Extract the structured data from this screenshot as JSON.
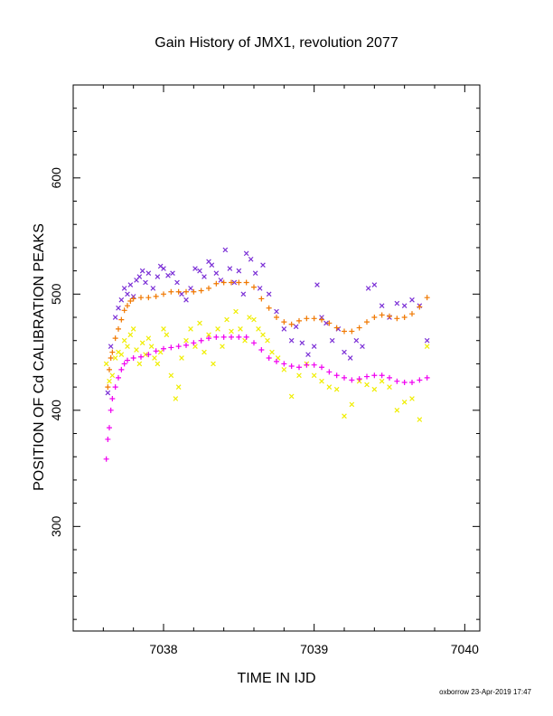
{
  "chart_data": {
    "type": "scatter",
    "title": "Gain History of JMX1, revolution 2077",
    "xlabel": "TIME IN IJD",
    "ylabel": "POSITION OF Cd CALIBRATION PEAKS",
    "xlim": [
      7037.4,
      7040.1
    ],
    "ylim": [
      210,
      680
    ],
    "xticks": [
      7038,
      7039,
      7040
    ],
    "yticks": [
      300,
      400,
      500,
      600
    ],
    "grid": false,
    "series": [
      {
        "color": "#7B2FD6",
        "marker": "x",
        "points": [
          [
            7037.63,
            415
          ],
          [
            7037.65,
            455
          ],
          [
            7037.68,
            480
          ],
          [
            7037.7,
            488
          ],
          [
            7037.72,
            495
          ],
          [
            7037.74,
            505
          ],
          [
            7037.76,
            500
          ],
          [
            7037.78,
            508
          ],
          [
            7037.8,
            498
          ],
          [
            7037.82,
            512
          ],
          [
            7037.84,
            515
          ],
          [
            7037.86,
            520
          ],
          [
            7037.88,
            510
          ],
          [
            7037.9,
            518
          ],
          [
            7037.93,
            505
          ],
          [
            7037.96,
            515
          ],
          [
            7037.98,
            524
          ],
          [
            7038.0,
            522
          ],
          [
            7038.03,
            516
          ],
          [
            7038.06,
            518
          ],
          [
            7038.09,
            510
          ],
          [
            7038.12,
            500
          ],
          [
            7038.15,
            495
          ],
          [
            7038.18,
            505
          ],
          [
            7038.21,
            522
          ],
          [
            7038.24,
            520
          ],
          [
            7038.27,
            515
          ],
          [
            7038.3,
            528
          ],
          [
            7038.32,
            525
          ],
          [
            7038.35,
            518
          ],
          [
            7038.38,
            512
          ],
          [
            7038.41,
            538
          ],
          [
            7038.44,
            522
          ],
          [
            7038.47,
            510
          ],
          [
            7038.5,
            520
          ],
          [
            7038.53,
            500
          ],
          [
            7038.55,
            535
          ],
          [
            7038.58,
            530
          ],
          [
            7038.61,
            518
          ],
          [
            7038.64,
            505
          ],
          [
            7038.66,
            525
          ],
          [
            7038.7,
            500
          ],
          [
            7038.75,
            485
          ],
          [
            7038.8,
            470
          ],
          [
            7038.85,
            460
          ],
          [
            7038.88,
            472
          ],
          [
            7038.92,
            458
          ],
          [
            7038.96,
            448
          ],
          [
            7039.0,
            455
          ],
          [
            7039.02,
            508
          ],
          [
            7039.05,
            480
          ],
          [
            7039.08,
            475
          ],
          [
            7039.12,
            460
          ],
          [
            7039.16,
            470
          ],
          [
            7039.2,
            450
          ],
          [
            7039.24,
            445
          ],
          [
            7039.28,
            460
          ],
          [
            7039.32,
            455
          ],
          [
            7039.36,
            505
          ],
          [
            7039.4,
            508
          ],
          [
            7039.45,
            490
          ],
          [
            7039.5,
            480
          ],
          [
            7039.55,
            492
          ],
          [
            7039.6,
            490
          ],
          [
            7039.65,
            495
          ],
          [
            7039.7,
            490
          ],
          [
            7039.75,
            460
          ]
        ]
      },
      {
        "color": "#F07800",
        "marker": "+",
        "points": [
          [
            7037.63,
            420
          ],
          [
            7037.64,
            435
          ],
          [
            7037.65,
            445
          ],
          [
            7037.66,
            450
          ],
          [
            7037.68,
            462
          ],
          [
            7037.7,
            470
          ],
          [
            7037.72,
            478
          ],
          [
            7037.74,
            486
          ],
          [
            7037.76,
            490
          ],
          [
            7037.78,
            494
          ],
          [
            7037.8,
            496
          ],
          [
            7037.85,
            497
          ],
          [
            7037.9,
            497
          ],
          [
            7037.95,
            498
          ],
          [
            7038.0,
            500
          ],
          [
            7038.05,
            502
          ],
          [
            7038.1,
            502
          ],
          [
            7038.15,
            502
          ],
          [
            7038.2,
            502
          ],
          [
            7038.25,
            503
          ],
          [
            7038.3,
            505
          ],
          [
            7038.35,
            509
          ],
          [
            7038.4,
            510
          ],
          [
            7038.45,
            510
          ],
          [
            7038.5,
            510
          ],
          [
            7038.55,
            510
          ],
          [
            7038.6,
            506
          ],
          [
            7038.65,
            496
          ],
          [
            7038.7,
            488
          ],
          [
            7038.75,
            480
          ],
          [
            7038.8,
            476
          ],
          [
            7038.85,
            474
          ],
          [
            7038.9,
            477
          ],
          [
            7038.95,
            479
          ],
          [
            7039.0,
            479
          ],
          [
            7039.05,
            478
          ],
          [
            7039.1,
            475
          ],
          [
            7039.15,
            471
          ],
          [
            7039.2,
            468
          ],
          [
            7039.25,
            468
          ],
          [
            7039.3,
            471
          ],
          [
            7039.35,
            476
          ],
          [
            7039.4,
            480
          ],
          [
            7039.45,
            482
          ],
          [
            7039.5,
            481
          ],
          [
            7039.55,
            479
          ],
          [
            7039.6,
            480
          ],
          [
            7039.65,
            483
          ],
          [
            7039.7,
            489
          ],
          [
            7039.75,
            497
          ]
        ]
      },
      {
        "color": "#F0EE00",
        "marker": "x",
        "points": [
          [
            7037.62,
            440
          ],
          [
            7037.64,
            425
          ],
          [
            7037.66,
            430
          ],
          [
            7037.68,
            445
          ],
          [
            7037.7,
            450
          ],
          [
            7037.72,
            448
          ],
          [
            7037.74,
            460
          ],
          [
            7037.76,
            455
          ],
          [
            7037.78,
            465
          ],
          [
            7037.8,
            470
          ],
          [
            7037.82,
            452
          ],
          [
            7037.84,
            440
          ],
          [
            7037.86,
            458
          ],
          [
            7037.88,
            448
          ],
          [
            7037.9,
            462
          ],
          [
            7037.92,
            455
          ],
          [
            7037.94,
            445
          ],
          [
            7037.96,
            440
          ],
          [
            7037.98,
            450
          ],
          [
            7038.0,
            470
          ],
          [
            7038.02,
            465
          ],
          [
            7038.05,
            430
          ],
          [
            7038.08,
            410
          ],
          [
            7038.1,
            420
          ],
          [
            7038.12,
            445
          ],
          [
            7038.15,
            460
          ],
          [
            7038.18,
            470
          ],
          [
            7038.21,
            455
          ],
          [
            7038.24,
            475
          ],
          [
            7038.27,
            450
          ],
          [
            7038.3,
            465
          ],
          [
            7038.33,
            440
          ],
          [
            7038.36,
            470
          ],
          [
            7038.39,
            455
          ],
          [
            7038.42,
            478
          ],
          [
            7038.45,
            468
          ],
          [
            7038.48,
            485
          ],
          [
            7038.51,
            470
          ],
          [
            7038.54,
            460
          ],
          [
            7038.57,
            480
          ],
          [
            7038.6,
            478
          ],
          [
            7038.63,
            470
          ],
          [
            7038.66,
            465
          ],
          [
            7038.69,
            460
          ],
          [
            7038.72,
            450
          ],
          [
            7038.76,
            445
          ],
          [
            7038.8,
            435
          ],
          [
            7038.85,
            412
          ],
          [
            7038.9,
            430
          ],
          [
            7038.95,
            440
          ],
          [
            7039.0,
            430
          ],
          [
            7039.05,
            425
          ],
          [
            7039.1,
            420
          ],
          [
            7039.15,
            418
          ],
          [
            7039.2,
            395
          ],
          [
            7039.25,
            405
          ],
          [
            7039.3,
            425
          ],
          [
            7039.35,
            422
          ],
          [
            7039.4,
            418
          ],
          [
            7039.45,
            425
          ],
          [
            7039.5,
            420
          ],
          [
            7039.55,
            400
          ],
          [
            7039.6,
            407
          ],
          [
            7039.65,
            410
          ],
          [
            7039.7,
            392
          ],
          [
            7039.75,
            455
          ]
        ]
      },
      {
        "color": "#F000F0",
        "marker": "+",
        "points": [
          [
            7037.62,
            358
          ],
          [
            7037.63,
            375
          ],
          [
            7037.64,
            385
          ],
          [
            7037.65,
            400
          ],
          [
            7037.66,
            410
          ],
          [
            7037.68,
            420
          ],
          [
            7037.7,
            428
          ],
          [
            7037.72,
            435
          ],
          [
            7037.74,
            440
          ],
          [
            7037.76,
            443
          ],
          [
            7037.8,
            445
          ],
          [
            7037.85,
            446
          ],
          [
            7037.9,
            448
          ],
          [
            7037.95,
            451
          ],
          [
            7038.0,
            453
          ],
          [
            7038.05,
            454
          ],
          [
            7038.1,
            455
          ],
          [
            7038.15,
            456
          ],
          [
            7038.2,
            458
          ],
          [
            7038.25,
            460
          ],
          [
            7038.3,
            462
          ],
          [
            7038.35,
            463
          ],
          [
            7038.4,
            463
          ],
          [
            7038.45,
            463
          ],
          [
            7038.5,
            463
          ],
          [
            7038.55,
            463
          ],
          [
            7038.6,
            458
          ],
          [
            7038.65,
            452
          ],
          [
            7038.7,
            445
          ],
          [
            7038.75,
            442
          ],
          [
            7038.8,
            440
          ],
          [
            7038.85,
            438
          ],
          [
            7038.9,
            437
          ],
          [
            7038.95,
            439
          ],
          [
            7039.0,
            439
          ],
          [
            7039.05,
            437
          ],
          [
            7039.1,
            433
          ],
          [
            7039.15,
            430
          ],
          [
            7039.2,
            428
          ],
          [
            7039.25,
            426
          ],
          [
            7039.3,
            427
          ],
          [
            7039.35,
            429
          ],
          [
            7039.4,
            430
          ],
          [
            7039.45,
            430
          ],
          [
            7039.5,
            428
          ],
          [
            7039.55,
            425
          ],
          [
            7039.6,
            424
          ],
          [
            7039.65,
            424
          ],
          [
            7039.7,
            426
          ],
          [
            7039.75,
            428
          ]
        ]
      }
    ]
  },
  "footer": {
    "stamp": "oxborrow 23-Apr-2019 17:47"
  }
}
